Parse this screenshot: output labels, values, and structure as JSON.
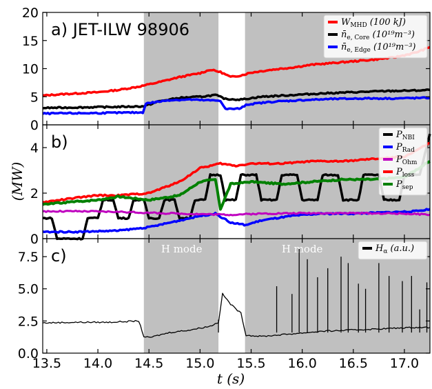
{
  "chart_data": [
    {
      "type": "line",
      "panel": "a",
      "panel_label": "a) JET-ILW 98906",
      "xlim": [
        13.46,
        17.25
      ],
      "ylim": [
        0,
        20
      ],
      "yticks": [
        0,
        5,
        10,
        15,
        20
      ],
      "ytick_labels": [
        "0",
        "5",
        "10",
        "15",
        "20"
      ],
      "legend": "top-right",
      "legend_entries": [
        {
          "label": "W",
          "sub": "MHD",
          "rest": " (100 kJ)",
          "color": "#ff0000"
        },
        {
          "label": "n̄",
          "sub": "e, Core",
          "rest": " (10¹⁹m⁻³)",
          "color": "#000000"
        },
        {
          "label": "n̄",
          "sub": "e, Edge",
          "rest": " (10¹⁹m⁻³)",
          "color": "#0000ff"
        }
      ],
      "series": [
        {
          "name": "W_MHD (100 kJ)",
          "color": "#ff0000",
          "width": 3.5,
          "x": [
            13.46,
            13.6,
            13.8,
            14.0,
            14.2,
            14.4,
            14.6,
            14.8,
            15.0,
            15.1,
            15.2,
            15.3,
            15.4,
            15.5,
            15.7,
            15.9,
            16.1,
            16.3,
            16.5,
            16.7,
            16.9,
            17.1,
            17.25
          ],
          "y": [
            5.2,
            5.4,
            5.6,
            5.8,
            6.2,
            6.8,
            7.6,
            8.5,
            9.2,
            9.8,
            9.4,
            8.5,
            8.8,
            9.3,
            9.8,
            10.2,
            10.7,
            11.0,
            11.3,
            11.6,
            12.0,
            12.8,
            13.8
          ]
        },
        {
          "name": "n_e,Core (10^19 m^-3)",
          "color": "#000000",
          "width": 3.5,
          "x": [
            13.46,
            13.8,
            14.2,
            14.45,
            14.6,
            14.8,
            15.0,
            15.15,
            15.25,
            15.4,
            15.6,
            15.9,
            16.2,
            16.5,
            16.8,
            17.1,
            17.25
          ],
          "y": [
            3.0,
            3.1,
            3.2,
            3.3,
            4.2,
            4.8,
            5.0,
            5.3,
            4.6,
            4.5,
            5.0,
            5.3,
            5.6,
            5.8,
            6.0,
            6.1,
            6.2
          ]
        },
        {
          "name": "n_e,Edge (10^19 m^-3)",
          "color": "#0000ff",
          "width": 3.5,
          "x": [
            13.46,
            14.0,
            14.44,
            14.47,
            14.7,
            14.9,
            15.0,
            15.2,
            15.25,
            15.4,
            15.45,
            15.7,
            16.0,
            16.3,
            16.6,
            16.9,
            17.25
          ],
          "y": [
            2.0,
            2.1,
            2.2,
            3.8,
            4.4,
            4.5,
            4.4,
            4.3,
            2.8,
            2.9,
            3.6,
            4.1,
            4.4,
            4.6,
            4.7,
            4.7,
            4.8
          ]
        }
      ]
    },
    {
      "type": "line",
      "panel": "b",
      "panel_label": "b)",
      "ylabel": "(MW)",
      "xlim": [
        13.46,
        17.25
      ],
      "ylim": [
        0,
        5
      ],
      "yticks": [
        0,
        2,
        4
      ],
      "ytick_labels": [
        "0",
        "2",
        "4"
      ],
      "legend": "top-right",
      "legend_entries": [
        {
          "label": "P",
          "sub": "NBI",
          "color": "#000000"
        },
        {
          "label": "P",
          "sub": "Rad",
          "color": "#0000ff"
        },
        {
          "label": "P",
          "sub": "Ohm",
          "color": "#bf00bf"
        },
        {
          "label": "P",
          "sub": "loss",
          "color": "#ff0000"
        },
        {
          "label": "P",
          "sub": "sep",
          "color": "#008000"
        }
      ],
      "series": [
        {
          "name": "P_NBI",
          "color": "#000000",
          "width": 3.5,
          "x": [
            13.46,
            13.55,
            13.6,
            13.85,
            13.9,
            14.0,
            14.05,
            14.15,
            14.2,
            14.3,
            14.35,
            14.45,
            14.5,
            14.6,
            14.65,
            14.75,
            14.8,
            14.9,
            14.95,
            15.05,
            15.1,
            15.2,
            15.25,
            15.35,
            15.4,
            15.55,
            15.6,
            15.75,
            15.8,
            15.95,
            16.0,
            16.15,
            16.2,
            16.35,
            16.4,
            16.55,
            16.6,
            16.75,
            16.8,
            16.95,
            17.0,
            17.15,
            17.25
          ],
          "y": [
            0.9,
            0.9,
            0.0,
            0.0,
            0.9,
            0.9,
            1.7,
            1.7,
            0.9,
            0.9,
            1.7,
            1.7,
            0.9,
            0.9,
            1.7,
            1.7,
            0.9,
            0.9,
            1.7,
            1.7,
            2.8,
            2.8,
            1.7,
            1.7,
            2.8,
            2.8,
            1.7,
            1.7,
            2.8,
            2.8,
            1.7,
            1.7,
            2.8,
            2.8,
            1.7,
            1.7,
            2.8,
            2.8,
            1.7,
            1.7,
            2.8,
            2.8,
            4.6
          ]
        },
        {
          "name": "P_Rad",
          "color": "#0000ff",
          "width": 3.5,
          "x": [
            13.46,
            13.8,
            14.2,
            14.5,
            14.8,
            15.0,
            15.15,
            15.3,
            15.45,
            15.6,
            15.9,
            16.2,
            16.5,
            16.8,
            17.1,
            17.25
          ],
          "y": [
            0.3,
            0.3,
            0.35,
            0.5,
            0.8,
            1.0,
            1.1,
            0.7,
            0.6,
            0.8,
            1.0,
            1.1,
            1.1,
            1.15,
            1.2,
            1.3
          ]
        },
        {
          "name": "P_Ohm",
          "color": "#bf00bf",
          "width": 3,
          "x": [
            13.46,
            13.8,
            14.2,
            14.6,
            15.0,
            15.3,
            15.6,
            16.0,
            16.5,
            17.0,
            17.25
          ],
          "y": [
            1.2,
            1.2,
            1.18,
            1.12,
            1.08,
            1.05,
            1.1,
            1.12,
            1.12,
            1.1,
            1.05
          ]
        },
        {
          "name": "P_loss",
          "color": "#ff0000",
          "width": 3.5,
          "x": [
            13.46,
            13.8,
            14.0,
            14.2,
            14.5,
            14.8,
            15.0,
            15.2,
            15.35,
            15.5,
            15.8,
            16.1,
            16.4,
            16.7,
            17.0,
            17.25
          ],
          "y": [
            1.6,
            1.8,
            1.9,
            1.9,
            2.0,
            2.5,
            3.1,
            3.3,
            3.2,
            3.3,
            3.3,
            3.4,
            3.4,
            3.5,
            3.6,
            4.2
          ]
        },
        {
          "name": "P_sep",
          "color": "#008000",
          "width": 4,
          "x": [
            13.46,
            13.7,
            14.0,
            14.2,
            14.5,
            14.8,
            15.0,
            15.15,
            15.2,
            15.3,
            15.5,
            15.8,
            16.1,
            16.4,
            16.7,
            17.0,
            17.25
          ],
          "y": [
            1.5,
            1.6,
            1.7,
            1.85,
            1.7,
            1.9,
            2.5,
            2.6,
            1.3,
            2.4,
            2.5,
            2.4,
            2.5,
            2.6,
            2.6,
            2.7,
            3.4
          ]
        }
      ]
    },
    {
      "type": "line",
      "panel": "c",
      "panel_label": "c)",
      "xlabel": "t (s)",
      "xlim": [
        13.46,
        17.25
      ],
      "ylim": [
        0,
        8.9
      ],
      "yticks": [
        0,
        2.5,
        5,
        7.5
      ],
      "ytick_labels": [
        "0.0",
        "2.5",
        "5.0",
        "7.5"
      ],
      "xticks": [
        13.5,
        14.0,
        14.5,
        15.0,
        15.5,
        16.0,
        16.5,
        17.0
      ],
      "xtick_labels": [
        "13.5",
        "14.0",
        "14.5",
        "15.0",
        "15.5",
        "16.0",
        "16.5",
        "17.0"
      ],
      "legend": "top-right",
      "legend_entries": [
        {
          "label": "H",
          "sub": "α",
          "rest": " (a.u.)",
          "color": "#000000"
        }
      ],
      "annotations": [
        {
          "text": "H mode",
          "x": 14.82
        },
        {
          "text": "H mode",
          "x": 16.0
        }
      ],
      "series": [
        {
          "name": "H_alpha (a.u.)",
          "color": "#000000",
          "width": 1.3,
          "x": [
            13.46,
            13.8,
            14.1,
            14.4,
            14.45,
            14.5,
            14.7,
            14.9,
            15.1,
            15.18,
            15.22,
            15.3,
            15.4,
            15.45,
            15.6,
            15.9,
            16.2,
            16.5,
            16.8,
            17.1,
            17.25
          ],
          "y": [
            2.35,
            2.4,
            2.4,
            2.5,
            1.3,
            1.2,
            1.6,
            1.8,
            2.1,
            2.4,
            4.6,
            3.8,
            3.1,
            1.4,
            1.3,
            1.5,
            1.7,
            1.8,
            1.9,
            2.0,
            2.0
          ]
        }
      ],
      "elm_spikes": [
        {
          "x": 15.18,
          "y": 2.6
        },
        {
          "x": 15.75,
          "y": 5.2
        },
        {
          "x": 15.9,
          "y": 4.6
        },
        {
          "x": 15.97,
          "y": 8.1
        },
        {
          "x": 16.05,
          "y": 7.3
        },
        {
          "x": 16.15,
          "y": 5.9
        },
        {
          "x": 16.25,
          "y": 6.6
        },
        {
          "x": 16.38,
          "y": 7.5
        },
        {
          "x": 16.45,
          "y": 7.0
        },
        {
          "x": 16.55,
          "y": 5.4
        },
        {
          "x": 16.62,
          "y": 5.0
        },
        {
          "x": 16.75,
          "y": 7.0
        },
        {
          "x": 16.85,
          "y": 6.0
        },
        {
          "x": 16.98,
          "y": 5.6
        },
        {
          "x": 17.07,
          "y": 6.0
        },
        {
          "x": 17.15,
          "y": 3.4
        },
        {
          "x": 17.22,
          "y": 5.5
        }
      ]
    }
  ],
  "shaded_regions": [
    {
      "from": 14.45,
      "to": 15.18
    },
    {
      "from": 15.44,
      "to": 17.25
    }
  ]
}
